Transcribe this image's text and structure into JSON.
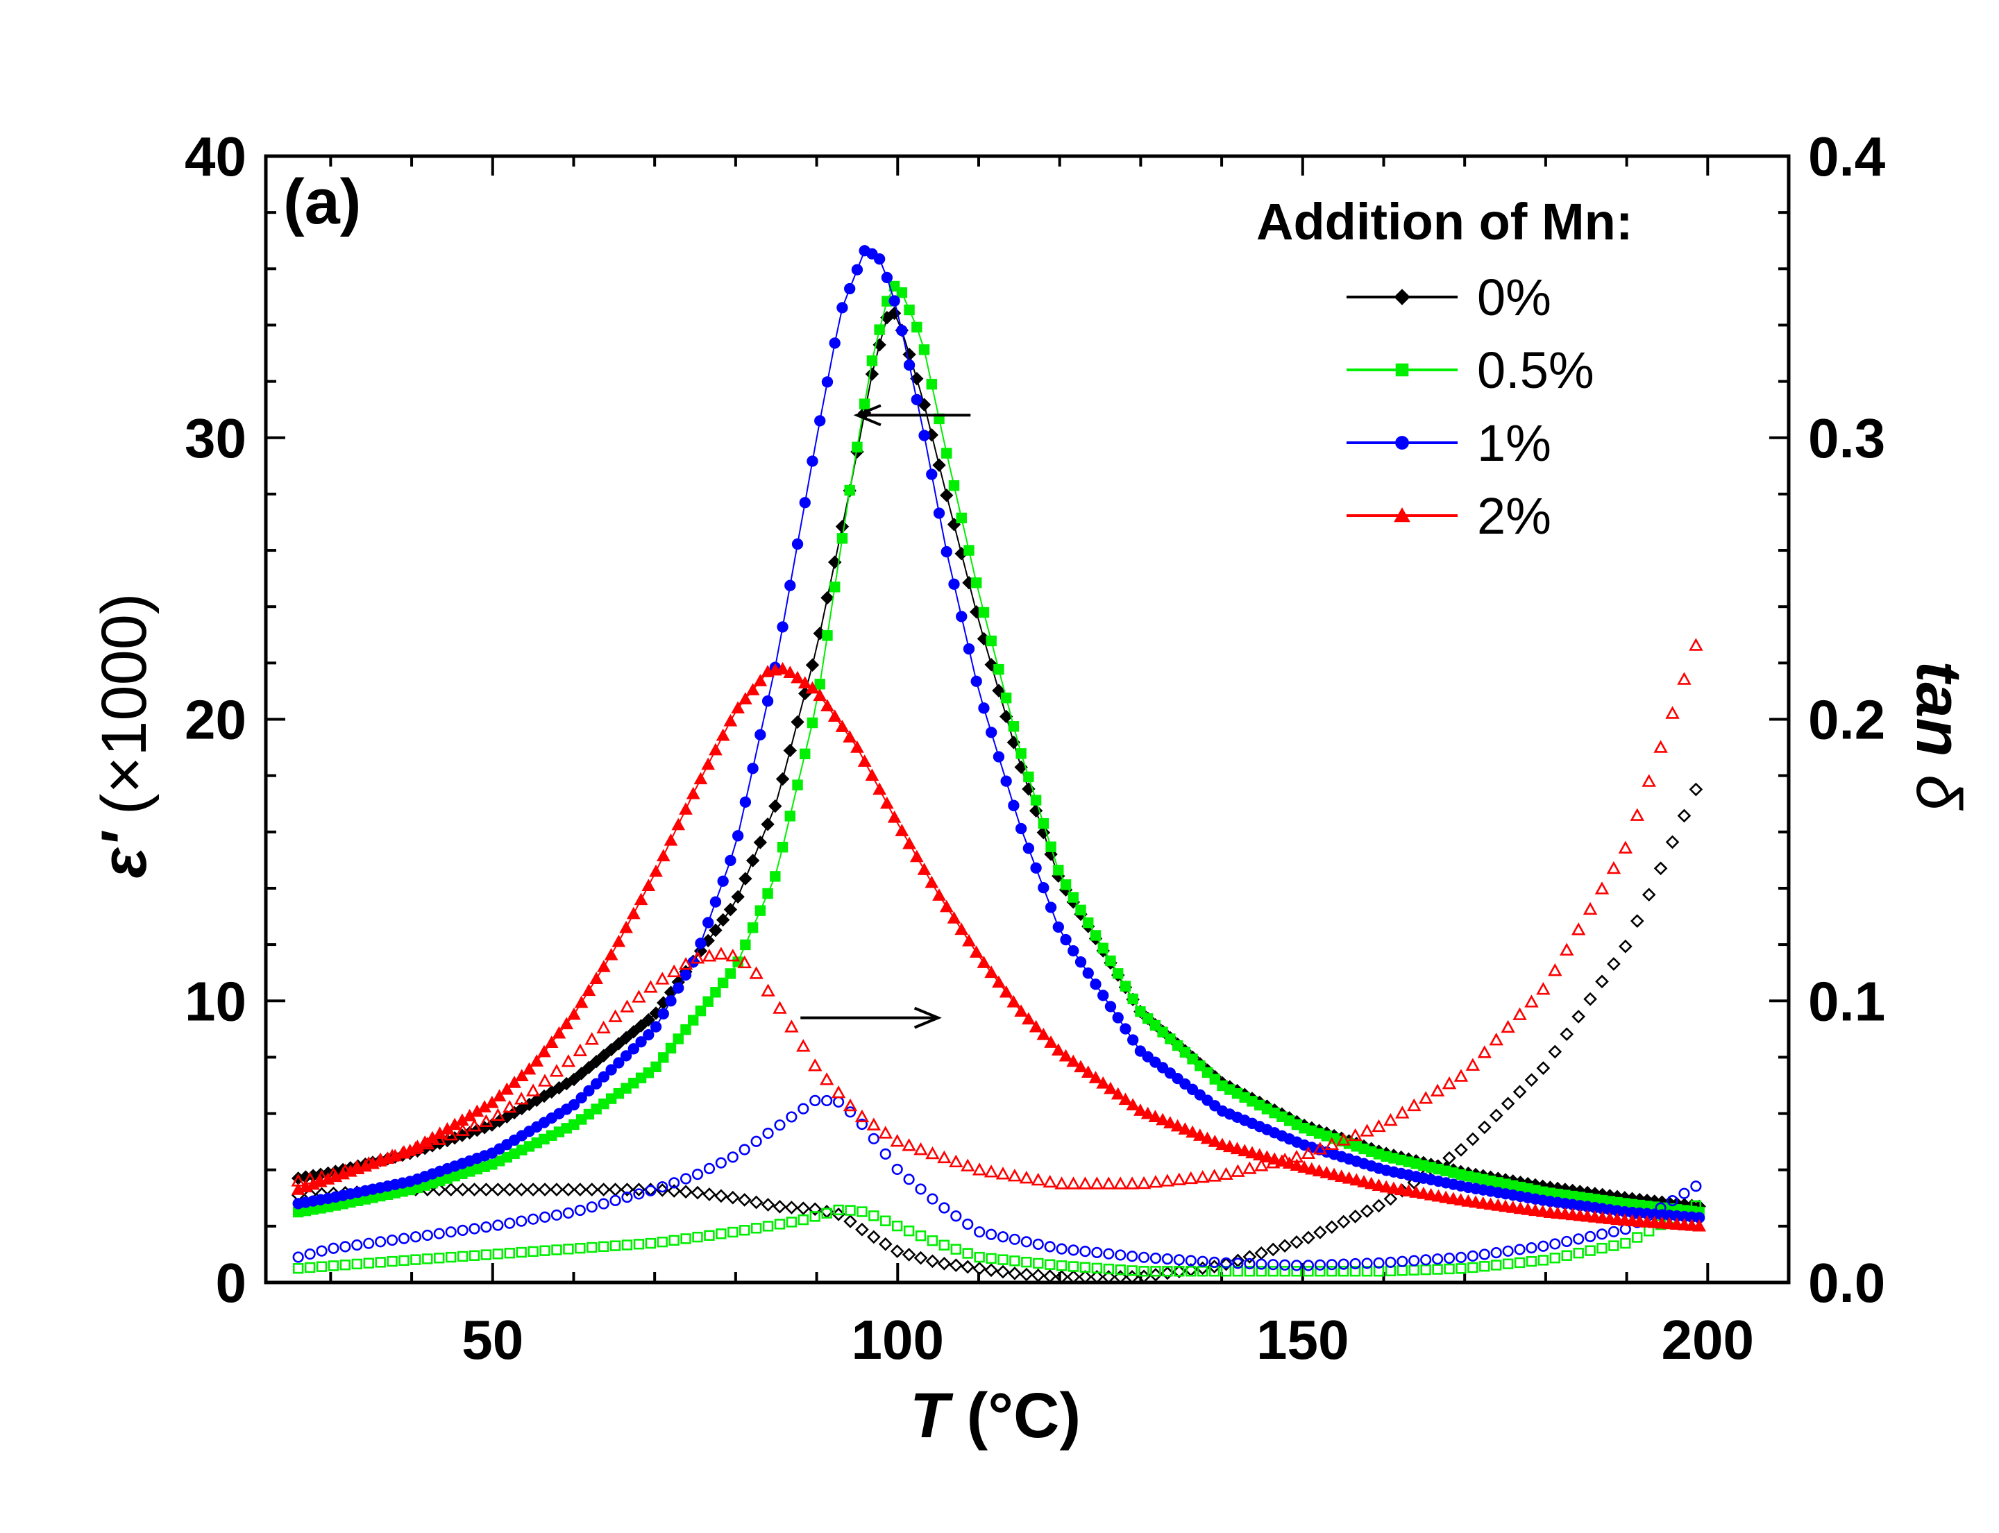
{
  "chart_data": {
    "type": "scatter",
    "panel_label": "(a)",
    "xlabel": {
      "var": "T",
      "unit": " (°C)"
    },
    "ylabel_left": {
      "sym": "ε'",
      "rest": " (×1000)"
    },
    "ylabel_right": {
      "pre": "tan ",
      "sym": "δ"
    },
    "xlim": [
      22,
      210
    ],
    "ylim_left": [
      0,
      40
    ],
    "ylim_right": [
      0.0,
      0.4
    ],
    "x_ticks": [
      50,
      100,
      150,
      200
    ],
    "x_tick_labels": [
      "50",
      "100",
      "150",
      "200"
    ],
    "y_left_ticks": [
      0,
      10,
      20,
      30,
      40
    ],
    "y_left_tick_labels": [
      "0",
      "10",
      "20",
      "30",
      "40"
    ],
    "y_right_ticks": [
      0.0,
      0.1,
      0.2,
      0.3,
      0.4
    ],
    "y_right_tick_labels": [
      "0.0",
      "0.1",
      "0.2",
      "0.3",
      "0.4"
    ],
    "legend_title": "Addition of Mn:",
    "legend_position": "top-right",
    "grid": false,
    "series": [
      {
        "name": "0%",
        "color": "#000000",
        "marker": "diamond",
        "permittivity": [
          [
            26,
            3.7
          ],
          [
            30,
            3.9
          ],
          [
            40,
            4.6
          ],
          [
            50,
            5.6
          ],
          [
            60,
            7.2
          ],
          [
            70,
            9.5
          ],
          [
            80,
            13.5
          ],
          [
            85,
            17
          ],
          [
            90,
            22.5
          ],
          [
            94,
            28
          ],
          [
            97,
            32.5
          ],
          [
            99,
            34.6
          ],
          [
            100,
            34.3
          ],
          [
            103,
            31.5
          ],
          [
            106,
            28
          ],
          [
            110,
            23.5
          ],
          [
            115,
            18.5
          ],
          [
            120,
            14.3
          ],
          [
            130,
            9.6
          ],
          [
            140,
            7.1
          ],
          [
            150,
            5.6
          ],
          [
            160,
            4.6
          ],
          [
            170,
            3.9
          ],
          [
            180,
            3.4
          ],
          [
            190,
            3.0
          ],
          [
            199,
            2.7
          ]
        ],
        "loss_tangent": [
          [
            26,
            0.031
          ],
          [
            40,
            0.033
          ],
          [
            60,
            0.033
          ],
          [
            70,
            0.033
          ],
          [
            75,
            0.032
          ],
          [
            80,
            0.03
          ],
          [
            85,
            0.027
          ],
          [
            90,
            0.026
          ],
          [
            93,
            0.024
          ],
          [
            96,
            0.018
          ],
          [
            100,
            0.011
          ],
          [
            105,
            0.007
          ],
          [
            110,
            0.005
          ],
          [
            115,
            0.003
          ],
          [
            120,
            0.002
          ],
          [
            130,
            0.002
          ],
          [
            140,
            0.006
          ],
          [
            150,
            0.015
          ],
          [
            160,
            0.028
          ],
          [
            170,
            0.048
          ],
          [
            180,
            0.077
          ],
          [
            190,
            0.12
          ],
          [
            199,
            0.178
          ]
        ]
      },
      {
        "name": "0.5%",
        "color": "#00ee00",
        "marker": "square",
        "permittivity": [
          [
            26,
            2.5
          ],
          [
            30,
            2.7
          ],
          [
            40,
            3.3
          ],
          [
            50,
            4.2
          ],
          [
            60,
            5.6
          ],
          [
            70,
            7.6
          ],
          [
            80,
            11.2
          ],
          [
            85,
            14.5
          ],
          [
            90,
            20.5
          ],
          [
            94,
            28
          ],
          [
            97,
            33
          ],
          [
            99,
            35.2
          ],
          [
            100,
            35.5
          ],
          [
            103,
            33.5
          ],
          [
            106,
            29.5
          ],
          [
            110,
            24.5
          ],
          [
            115,
            19
          ],
          [
            120,
            14.5
          ],
          [
            130,
            9.6
          ],
          [
            140,
            7.0
          ],
          [
            150,
            5.5
          ],
          [
            160,
            4.5
          ],
          [
            170,
            3.8
          ],
          [
            180,
            3.2
          ],
          [
            190,
            2.8
          ],
          [
            199,
            2.5
          ]
        ],
        "loss_tangent": [
          [
            26,
            0.005
          ],
          [
            40,
            0.008
          ],
          [
            50,
            0.01
          ],
          [
            60,
            0.012
          ],
          [
            70,
            0.014
          ],
          [
            80,
            0.018
          ],
          [
            88,
            0.022
          ],
          [
            93,
            0.026
          ],
          [
            96,
            0.025
          ],
          [
            100,
            0.02
          ],
          [
            105,
            0.014
          ],
          [
            110,
            0.009
          ],
          [
            120,
            0.006
          ],
          [
            130,
            0.004
          ],
          [
            140,
            0.004
          ],
          [
            150,
            0.004
          ],
          [
            160,
            0.004
          ],
          [
            170,
            0.005
          ],
          [
            180,
            0.008
          ],
          [
            190,
            0.014
          ],
          [
            199,
            0.028
          ]
        ]
      },
      {
        "name": "1%",
        "color": "#0000ff",
        "marker": "circle",
        "permittivity": [
          [
            26,
            2.8
          ],
          [
            30,
            3.0
          ],
          [
            40,
            3.6
          ],
          [
            50,
            4.6
          ],
          [
            60,
            6.3
          ],
          [
            70,
            9
          ],
          [
            75,
            11.5
          ],
          [
            80,
            15.5
          ],
          [
            85,
            22
          ],
          [
            90,
            30
          ],
          [
            93,
            34.5
          ],
          [
            96,
            36.7
          ],
          [
            98,
            36.3
          ],
          [
            100,
            34.5
          ],
          [
            103,
            30.5
          ],
          [
            106,
            26
          ],
          [
            110,
            21
          ],
          [
            115,
            16.3
          ],
          [
            120,
            12.5
          ],
          [
            130,
            8.2
          ],
          [
            140,
            6.1
          ],
          [
            150,
            4.9
          ],
          [
            160,
            4.0
          ],
          [
            170,
            3.4
          ],
          [
            180,
            2.9
          ],
          [
            190,
            2.5
          ],
          [
            199,
            2.3
          ]
        ],
        "loss_tangent": [
          [
            26,
            0.009
          ],
          [
            30,
            0.012
          ],
          [
            40,
            0.016
          ],
          [
            50,
            0.02
          ],
          [
            60,
            0.025
          ],
          [
            70,
            0.033
          ],
          [
            75,
            0.038
          ],
          [
            80,
            0.045
          ],
          [
            85,
            0.055
          ],
          [
            90,
            0.065
          ],
          [
            93,
            0.064
          ],
          [
            96,
            0.055
          ],
          [
            100,
            0.04
          ],
          [
            105,
            0.028
          ],
          [
            110,
            0.018
          ],
          [
            120,
            0.012
          ],
          [
            130,
            0.009
          ],
          [
            140,
            0.007
          ],
          [
            150,
            0.006
          ],
          [
            160,
            0.007
          ],
          [
            170,
            0.009
          ],
          [
            180,
            0.013
          ],
          [
            190,
            0.019
          ],
          [
            199,
            0.035
          ]
        ]
      },
      {
        "name": "2%",
        "color": "#ff0000",
        "marker": "triangle",
        "permittivity": [
          [
            26,
            3.3
          ],
          [
            30,
            3.7
          ],
          [
            40,
            4.7
          ],
          [
            50,
            6.4
          ],
          [
            55,
            7.7
          ],
          [
            60,
            9.5
          ],
          [
            65,
            11.8
          ],
          [
            70,
            14.5
          ],
          [
            75,
            17.5
          ],
          [
            80,
            20.3
          ],
          [
            84,
            21.7
          ],
          [
            86,
            21.8
          ],
          [
            90,
            21.0
          ],
          [
            95,
            19
          ],
          [
            100,
            16.3
          ],
          [
            105,
            13.8
          ],
          [
            110,
            11.6
          ],
          [
            115,
            9.7
          ],
          [
            120,
            8.2
          ],
          [
            130,
            6.1
          ],
          [
            140,
            4.9
          ],
          [
            150,
            4.1
          ],
          [
            160,
            3.4
          ],
          [
            170,
            2.9
          ],
          [
            180,
            2.5
          ],
          [
            190,
            2.2
          ],
          [
            199,
            2.0
          ]
        ],
        "loss_tangent": [
          [
            26,
            0.036
          ],
          [
            30,
            0.038
          ],
          [
            40,
            0.047
          ],
          [
            50,
            0.058
          ],
          [
            55,
            0.068
          ],
          [
            60,
            0.08
          ],
          [
            65,
            0.094
          ],
          [
            70,
            0.106
          ],
          [
            75,
            0.115
          ],
          [
            79,
            0.117
          ],
          [
            82,
            0.112
          ],
          [
            86,
            0.095
          ],
          [
            90,
            0.076
          ],
          [
            95,
            0.06
          ],
          [
            100,
            0.05
          ],
          [
            110,
            0.04
          ],
          [
            120,
            0.035
          ],
          [
            130,
            0.035
          ],
          [
            140,
            0.038
          ],
          [
            150,
            0.045
          ],
          [
            160,
            0.056
          ],
          [
            170,
            0.074
          ],
          [
            180,
            0.105
          ],
          [
            190,
            0.155
          ],
          [
            199,
            0.23
          ]
        ]
      }
    ],
    "annotations": [
      {
        "type": "arrow",
        "direction": "left",
        "from": [
          109,
          30.8
        ],
        "to": [
          95,
          30.8
        ]
      },
      {
        "type": "arrow",
        "direction": "right",
        "from": [
          88,
          9.4
        ],
        "to": [
          105,
          9.4
        ]
      }
    ]
  }
}
